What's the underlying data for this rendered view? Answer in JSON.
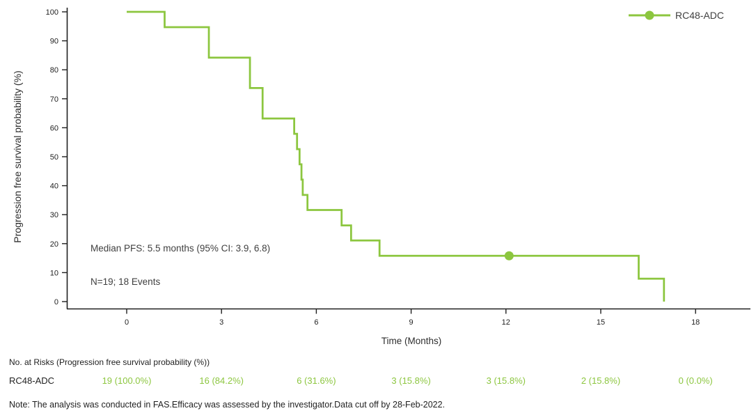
{
  "colors": {
    "accent": "#8CC63F",
    "axis": "#1f1f1f",
    "text": "#3f3f3f"
  },
  "chart_data": {
    "type": "line",
    "subtype": "kaplan-meier-step",
    "title": "",
    "xlabel": "Time (Months)",
    "ylabel": "Progression free survival probability (%)",
    "xlim": [
      -1.9,
      19.7
    ],
    "ylim": [
      0,
      100
    ],
    "xticks": [
      0,
      3,
      6,
      9,
      12,
      15,
      18
    ],
    "yticks": [
      0,
      10,
      20,
      30,
      40,
      50,
      60,
      70,
      80,
      90,
      100
    ],
    "grid": false,
    "legend_position": "top-right",
    "series": [
      {
        "name": "RC48-ADC",
        "color": "#8CC63F",
        "start": [
          0,
          100
        ],
        "drops": [
          [
            1.2,
            94.7
          ],
          [
            2.6,
            84.2
          ],
          [
            3.9,
            73.7
          ],
          [
            4.3,
            63.2
          ],
          [
            5.3,
            57.9
          ],
          [
            5.39,
            52.6
          ],
          [
            5.47,
            47.4
          ],
          [
            5.53,
            42.1
          ],
          [
            5.57,
            36.8
          ],
          [
            5.72,
            31.6
          ],
          [
            6.8,
            26.3
          ],
          [
            7.1,
            21.1
          ],
          [
            8.0,
            15.8
          ],
          [
            16.2,
            7.9
          ],
          [
            17.0,
            0
          ]
        ],
        "censor_marks": [
          [
            12.1,
            15.8
          ]
        ]
      }
    ],
    "annotations": [
      {
        "text": "Median PFS: 5.5 months (95% CI: 3.9, 6.8)",
        "x": -1.15,
        "y": 17.3
      },
      {
        "text": "N=19; 18 Events",
        "x": -1.15,
        "y": 5.8
      }
    ]
  },
  "risk_table": {
    "title": "No. at Risks (Progression free survival probability (%))",
    "times": [
      0,
      3,
      6,
      9,
      12,
      15,
      18
    ],
    "rows": [
      {
        "label": "RC48-ADC",
        "values": [
          "19 (100.0%)",
          "16 (84.2%)",
          "6 (31.6%)",
          "3 (15.8%)",
          "3 (15.8%)",
          "2 (15.8%)",
          "0 (0.0%)"
        ]
      }
    ]
  },
  "note": "Note: The analysis was conducted in FAS.Efficacy was assessed by the investigator.Data cut off by 28-Feb-2022."
}
